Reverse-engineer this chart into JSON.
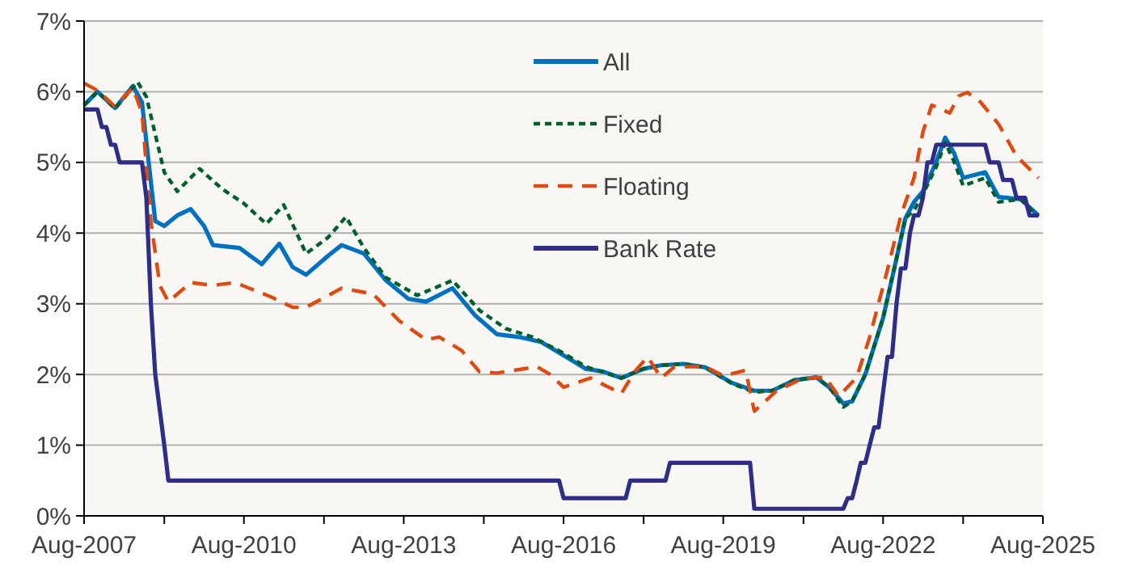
{
  "chart_data": {
    "type": "line",
    "xlim": [
      "2007-08",
      "2025-08"
    ],
    "xticks": [
      {
        "value": "2007-08",
        "label": "Aug-2007"
      },
      {
        "value": "2009-02",
        "label": null
      },
      {
        "value": "2010-08",
        "label": "Aug-2010"
      },
      {
        "value": "2012-02",
        "label": null
      },
      {
        "value": "2013-08",
        "label": "Aug-2013"
      },
      {
        "value": "2015-02",
        "label": null
      },
      {
        "value": "2016-08",
        "label": "Aug-2016"
      },
      {
        "value": "2018-02",
        "label": null
      },
      {
        "value": "2019-08",
        "label": "Aug-2019"
      },
      {
        "value": "2021-02",
        "label": null
      },
      {
        "value": "2022-08",
        "label": "Aug-2022"
      },
      {
        "value": "2024-02",
        "label": null
      },
      {
        "value": "2025-08",
        "label": "Aug-2025"
      }
    ],
    "ylim": [
      0,
      7
    ],
    "yticks": [
      {
        "value": 0,
        "label": "0%"
      },
      {
        "value": 1,
        "label": "1%"
      },
      {
        "value": 2,
        "label": "2%"
      },
      {
        "value": 3,
        "label": "3%"
      },
      {
        "value": 4,
        "label": "4%"
      },
      {
        "value": 5,
        "label": "5%"
      },
      {
        "value": 6,
        "label": "6%"
      },
      {
        "value": 7,
        "label": "7%"
      }
    ],
    "grid": "y",
    "legend": "top",
    "series": [
      {
        "name": "All",
        "color": "#0070c0",
        "line_style": "solid",
        "x": [
          "2007-08",
          "2007-11",
          "2008-03",
          "2008-07",
          "2008-09",
          "2008-12",
          "2009-02",
          "2009-05",
          "2009-08",
          "2009-11",
          "2010-01",
          "2010-07",
          "2010-12",
          "2011-04",
          "2011-07",
          "2011-10",
          "2012-03",
          "2012-06",
          "2012-11",
          "2013-04",
          "2013-09",
          "2014-01",
          "2014-07",
          "2014-12",
          "2015-05",
          "2015-10",
          "2016-03",
          "2016-08",
          "2017-01",
          "2017-05",
          "2017-09",
          "2018-02",
          "2018-06",
          "2018-11",
          "2019-04",
          "2019-10",
          "2020-03",
          "2020-07",
          "2020-12",
          "2021-05",
          "2021-08",
          "2021-11",
          "2022-01",
          "2022-04",
          "2022-08",
          "2022-11",
          "2023-01",
          "2023-03",
          "2023-05",
          "2023-08",
          "2023-10",
          "2023-12",
          "2024-02",
          "2024-07",
          "2024-10",
          "2025-03",
          "2025-07"
        ],
        "values": [
          5.81,
          6.0,
          5.77,
          6.08,
          5.85,
          4.17,
          4.1,
          4.25,
          4.34,
          4.1,
          3.83,
          3.79,
          3.56,
          3.85,
          3.52,
          3.41,
          3.68,
          3.83,
          3.71,
          3.33,
          3.07,
          3.03,
          3.22,
          2.84,
          2.57,
          2.53,
          2.46,
          2.27,
          2.08,
          2.04,
          1.95,
          2.08,
          2.13,
          2.15,
          2.1,
          1.88,
          1.77,
          1.77,
          1.92,
          1.96,
          1.81,
          1.59,
          1.62,
          2.0,
          2.8,
          3.64,
          4.21,
          4.44,
          4.59,
          5.01,
          5.35,
          5.13,
          4.78,
          4.86,
          4.51,
          4.48,
          4.25
        ]
      },
      {
        "name": "Fixed",
        "color": "#00602b",
        "line_style": "dotted",
        "x": [
          "2007-08",
          "2007-11",
          "2008-03",
          "2008-08",
          "2008-10",
          "2009-02",
          "2009-05",
          "2009-10",
          "2010-03",
          "2010-08",
          "2011-01",
          "2011-05",
          "2011-10",
          "2012-03",
          "2012-07",
          "2012-11",
          "2013-04",
          "2013-11",
          "2014-07",
          "2015-01",
          "2015-07",
          "2016-01",
          "2016-08",
          "2017-01",
          "2017-09",
          "2018-02",
          "2018-06",
          "2018-11",
          "2019-04",
          "2019-10",
          "2020-03",
          "2020-07",
          "2020-12",
          "2021-05",
          "2021-08",
          "2021-11",
          "2022-01",
          "2022-04",
          "2022-08",
          "2022-11",
          "2023-01",
          "2023-03",
          "2023-05",
          "2023-08",
          "2023-10",
          "2023-12",
          "2024-02",
          "2024-07",
          "2024-10",
          "2025-03",
          "2025-07"
        ],
        "values": [
          5.81,
          6.0,
          5.76,
          6.14,
          5.93,
          4.86,
          4.59,
          4.91,
          4.63,
          4.42,
          4.13,
          4.4,
          3.71,
          3.94,
          4.23,
          3.79,
          3.37,
          3.12,
          3.33,
          2.91,
          2.65,
          2.53,
          2.3,
          2.11,
          1.95,
          2.08,
          2.13,
          2.15,
          2.1,
          1.87,
          1.75,
          1.77,
          1.92,
          1.96,
          1.81,
          1.54,
          1.62,
          2.0,
          2.8,
          3.64,
          4.21,
          4.32,
          4.55,
          4.94,
          5.28,
          5.01,
          4.67,
          4.78,
          4.44,
          4.48,
          4.23
        ]
      },
      {
        "name": "Floating",
        "color": "#e04a10",
        "line_style": "dashed",
        "x": [
          "2007-08",
          "2007-11",
          "2008-03",
          "2008-07",
          "2008-09",
          "2008-11",
          "2009-01",
          "2009-03",
          "2009-08",
          "2010-01",
          "2010-06",
          "2011-02",
          "2011-07",
          "2011-10",
          "2012-06",
          "2013-01",
          "2013-07",
          "2014-01",
          "2014-04",
          "2014-09",
          "2015-01",
          "2015-05",
          "2016-02",
          "2016-05",
          "2016-08",
          "2017-02",
          "2017-09",
          "2017-12",
          "2018-03",
          "2018-06",
          "2018-09",
          "2019-04",
          "2019-08",
          "2020-01",
          "2020-03",
          "2020-08",
          "2021-02",
          "2021-07",
          "2021-10",
          "2022-02",
          "2022-05",
          "2022-09",
          "2022-12",
          "2023-03",
          "2023-05",
          "2023-07",
          "2023-11",
          "2024-01",
          "2024-03",
          "2024-06",
          "2024-10",
          "2025-02",
          "2025-07"
        ],
        "values": [
          6.12,
          6.02,
          5.79,
          6.06,
          5.7,
          4.17,
          3.26,
          3.03,
          3.3,
          3.26,
          3.3,
          3.1,
          2.95,
          2.95,
          3.22,
          3.14,
          2.76,
          2.49,
          2.53,
          2.34,
          2.04,
          2.02,
          2.11,
          2.0,
          1.82,
          1.95,
          1.73,
          2.04,
          2.25,
          1.95,
          2.11,
          2.11,
          1.98,
          2.06,
          1.48,
          1.77,
          1.95,
          1.96,
          1.69,
          1.96,
          2.53,
          3.49,
          4.25,
          4.78,
          5.43,
          5.81,
          5.7,
          5.94,
          5.99,
          5.85,
          5.54,
          5.09,
          4.78
        ]
      },
      {
        "name": "Bank Rate",
        "color": "#2e2e86",
        "line_style": "solid",
        "x": [
          "2007-08",
          "2007-11",
          "2007-12",
          "2008-01",
          "2008-02",
          "2008-03",
          "2008-04",
          "2008-09",
          "2008-10",
          "2008-11",
          "2008-12",
          "2009-01",
          "2009-02",
          "2009-03",
          "2016-07",
          "2016-08",
          "2017-10",
          "2017-11",
          "2018-07",
          "2018-08",
          "2020-02",
          "2020-03",
          "2021-11",
          "2021-12",
          "2022-01",
          "2022-02",
          "2022-03",
          "2022-04",
          "2022-05",
          "2022-06",
          "2022-07",
          "2022-08",
          "2022-09",
          "2022-10",
          "2022-11",
          "2022-12",
          "2023-01",
          "2023-02",
          "2023-03",
          "2023-04",
          "2023-05",
          "2023-06",
          "2023-07",
          "2023-08",
          "2024-07",
          "2024-08",
          "2024-10",
          "2024-11",
          "2025-01",
          "2025-02",
          "2025-04",
          "2025-05",
          "2025-07"
        ],
        "values": [
          5.75,
          5.75,
          5.5,
          5.5,
          5.25,
          5.25,
          5.0,
          5.0,
          4.5,
          3.0,
          2.0,
          1.5,
          1.0,
          0.5,
          0.5,
          0.25,
          0.25,
          0.5,
          0.5,
          0.75,
          0.75,
          0.1,
          0.1,
          0.25,
          0.25,
          0.5,
          0.75,
          0.75,
          1.0,
          1.25,
          1.25,
          1.75,
          2.25,
          2.25,
          3.0,
          3.5,
          3.5,
          4.0,
          4.25,
          4.25,
          4.5,
          5.0,
          5.0,
          5.25,
          5.25,
          5.0,
          5.0,
          4.75,
          4.75,
          4.5,
          4.5,
          4.25,
          4.25
        ]
      }
    ]
  }
}
